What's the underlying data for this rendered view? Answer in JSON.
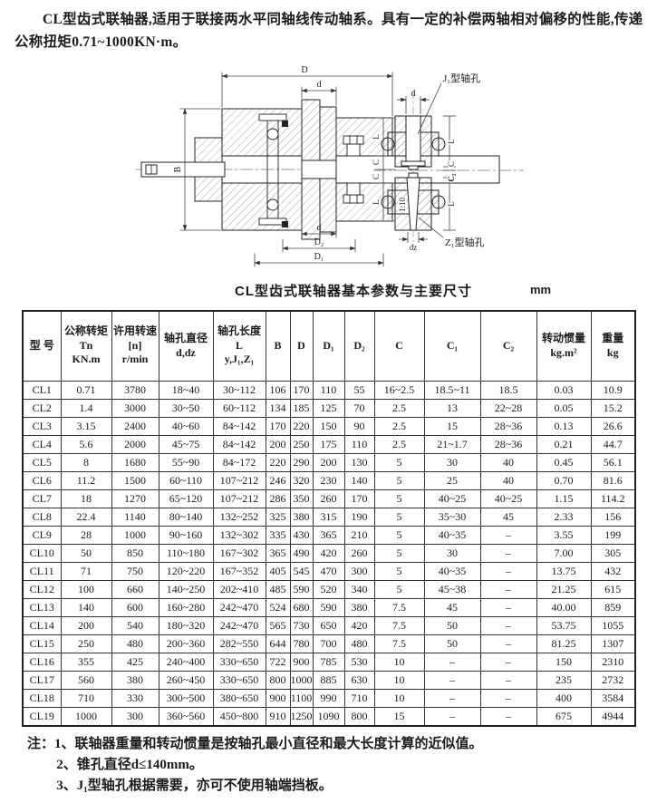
{
  "intro": "CL型齿式联轴器,适用于联接两水平同轴线传动轴系。具有一定的补偿两轴相对偏移的性能,传递公称扭矩0.71~1000KN·m。",
  "diagram": {
    "callout_j1": "J₁型轴孔",
    "callout_z1": "Z₁型轴孔",
    "taper": "1:10",
    "dim_D": "D",
    "dim_d": "d",
    "dim_B": "B",
    "dim_L": "L",
    "dim_C": "C",
    "dim_C2": "C₂",
    "dim_D1": "D₁",
    "dim_D2": "D₂",
    "dim_dz": "dz"
  },
  "table": {
    "title": "CL型齿式联轴器基本参数与主要尺寸",
    "unit": "mm",
    "headers": [
      [
        "型 号"
      ],
      [
        "公称转矩",
        "Tn",
        "KN.m"
      ],
      [
        "许用转速",
        "[n]",
        "r/min"
      ],
      [
        "轴孔直径",
        "d,dz"
      ],
      [
        "轴孔长度",
        "L",
        "y,J₁,Z₁"
      ],
      [
        "B"
      ],
      [
        "D"
      ],
      [
        "D₁"
      ],
      [
        "D₂"
      ],
      [
        "C"
      ],
      [
        "C₁"
      ],
      [
        "C₂"
      ],
      [
        "转动惯量",
        "kg.m²"
      ],
      [
        "重量",
        "kg"
      ]
    ],
    "rows": [
      [
        "CL1",
        "0.71",
        "3780",
        "18~40",
        "30~112",
        "106",
        "170",
        "110",
        "55",
        "16~2.5",
        "18.5~11",
        "18.5",
        "0.03",
        "10.9"
      ],
      [
        "CL2",
        "1.4",
        "3000",
        "30~50",
        "60~112",
        "134",
        "185",
        "125",
        "70",
        "2.5",
        "13",
        "22~28",
        "0.05",
        "15.2"
      ],
      [
        "CL3",
        "3.15",
        "2400",
        "40~60",
        "84~142",
        "170",
        "220",
        "150",
        "90",
        "2.5",
        "15",
        "28~36",
        "0.13",
        "26.6"
      ],
      [
        "CL4",
        "5.6",
        "2000",
        "45~75",
        "84~142",
        "200",
        "250",
        "175",
        "110",
        "2.5",
        "21~1.7",
        "28~36",
        "0.21",
        "44.7"
      ],
      [
        "CL5",
        "8",
        "1680",
        "55~90",
        "84~172",
        "220",
        "290",
        "200",
        "130",
        "5",
        "30",
        "40",
        "0.45",
        "56.1"
      ],
      [
        "CL6",
        "11.2",
        "1500",
        "60~110",
        "107~212",
        "246",
        "320",
        "230",
        "140",
        "5",
        "25",
        "40",
        "0.70",
        "81.6"
      ],
      [
        "CL7",
        "18",
        "1270",
        "65~120",
        "107~212",
        "286",
        "350",
        "260",
        "170",
        "5",
        "40~25",
        "40~25",
        "1.15",
        "114.2"
      ],
      [
        "CL8",
        "22.4",
        "1140",
        "80~140",
        "132~252",
        "325",
        "380",
        "315",
        "190",
        "5",
        "35~30",
        "45",
        "2.33",
        "156"
      ],
      [
        "CL9",
        "28",
        "1000",
        "90~160",
        "132~302",
        "335",
        "430",
        "365",
        "210",
        "5",
        "40~35",
        "–",
        "3.55",
        "199"
      ],
      [
        "CL10",
        "50",
        "850",
        "110~180",
        "167~302",
        "365",
        "490",
        "420",
        "260",
        "5",
        "30",
        "–",
        "7.00",
        "305"
      ],
      [
        "CL11",
        "71",
        "750",
        "120~220",
        "167~352",
        "405",
        "545",
        "470",
        "300",
        "5",
        "40~35",
        "–",
        "13.75",
        "432"
      ],
      [
        "CL12",
        "100",
        "660",
        "140~250",
        "202~410",
        "485",
        "590",
        "520",
        "340",
        "5",
        "45~38",
        "–",
        "21.25",
        "615"
      ],
      [
        "CL13",
        "140",
        "600",
        "160~280",
        "242~470",
        "524",
        "680",
        "590",
        "380",
        "7.5",
        "45",
        "–",
        "40.00",
        "859"
      ],
      [
        "CL14",
        "200",
        "540",
        "180~320",
        "242~470",
        "565",
        "730",
        "650",
        "420",
        "7.5",
        "50",
        "–",
        "53.75",
        "1055"
      ],
      [
        "CL15",
        "250",
        "480",
        "200~360",
        "282~550",
        "644",
        "780",
        "700",
        "480",
        "7.5",
        "50",
        "–",
        "81.25",
        "1307"
      ],
      [
        "CL16",
        "355",
        "425",
        "240~400",
        "330~650",
        "722",
        "900",
        "785",
        "530",
        "10",
        "–",
        "–",
        "150",
        "2310"
      ],
      [
        "CL17",
        "560",
        "380",
        "260~450",
        "330~650",
        "800",
        "1000",
        "885",
        "630",
        "10",
        "–",
        "–",
        "235",
        "2732"
      ],
      [
        "CL18",
        "710",
        "330",
        "300~500",
        "380~650",
        "900",
        "1100",
        "990",
        "710",
        "10",
        "–",
        "–",
        "400",
        "3584"
      ],
      [
        "CL19",
        "1000",
        "300",
        "360~560",
        "450~800",
        "910",
        "1250",
        "1090",
        "800",
        "15",
        "–",
        "–",
        "675",
        "4944"
      ]
    ]
  },
  "notes": {
    "label": "注：",
    "items": [
      "1、联轴器重量和转动惯量是按轴孔最小直径和最大长度计算的近似值。",
      "2、锥孔直径d≤140mm。",
      "3、J₁型轴孔根据需要，亦可不使用轴端挡板。"
    ]
  }
}
